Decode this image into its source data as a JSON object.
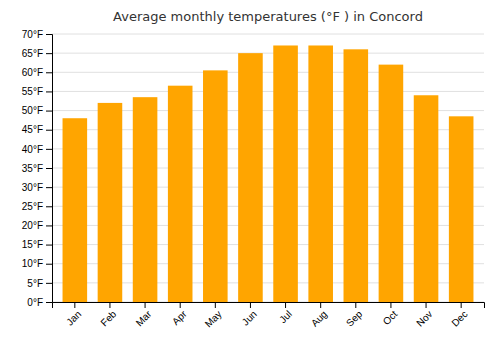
{
  "chart_data": {
    "type": "bar",
    "title": "Average monthly temperatures (°F ) in Concord",
    "categories": [
      "Jan",
      "Feb",
      "Mar",
      "Apr",
      "May",
      "Jun",
      "Jul",
      "Aug",
      "Sep",
      "Oct",
      "Nov",
      "Dec"
    ],
    "values": [
      48,
      52,
      53.5,
      56.5,
      60.5,
      65,
      67,
      67,
      66,
      62,
      54,
      48.5
    ],
    "color": "#FFA500",
    "ylim": [
      0,
      70
    ],
    "yticks": [
      {
        "value": 0,
        "label": "0°F"
      },
      {
        "value": 5,
        "label": "5°F"
      },
      {
        "value": 10,
        "label": "10°F"
      },
      {
        "value": 15,
        "label": "15°F"
      },
      {
        "value": 20,
        "label": "20°F"
      },
      {
        "value": 25,
        "label": "25°F"
      },
      {
        "value": 30,
        "label": "30°F"
      },
      {
        "value": 35,
        "label": "35°F"
      },
      {
        "value": 40,
        "label": "40°F"
      },
      {
        "value": 45,
        "label": "45°F"
      },
      {
        "value": 50,
        "label": "50°F"
      },
      {
        "value": 55,
        "label": "55°F"
      },
      {
        "value": 60,
        "label": "60°F"
      },
      {
        "value": 65,
        "label": "65°F"
      },
      {
        "value": 70,
        "label": "70°F"
      }
    ],
    "grid": true
  }
}
